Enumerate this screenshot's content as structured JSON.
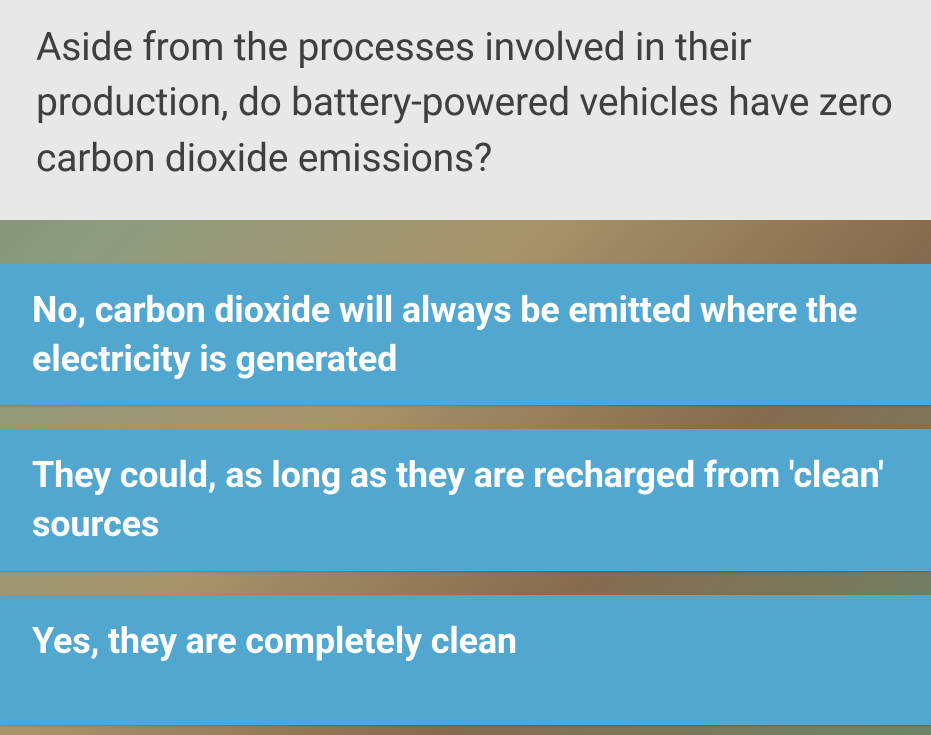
{
  "question": {
    "text": "Aside from the processes involved in their production, do battery-powered vehicles have zero carbon dioxide emissions?"
  },
  "answers": [
    {
      "label": "No, carbon dioxide will always be emitted where the electricity is generated"
    },
    {
      "label": "They could, as long as they are recharged from 'clean' sources"
    },
    {
      "label": "Yes, they are completely clean"
    }
  ],
  "colors": {
    "question_bg": "#e8e8e8",
    "question_text": "#3f3f3f",
    "answer_bg": "#51a7cf",
    "answer_text": "#ffffff"
  }
}
